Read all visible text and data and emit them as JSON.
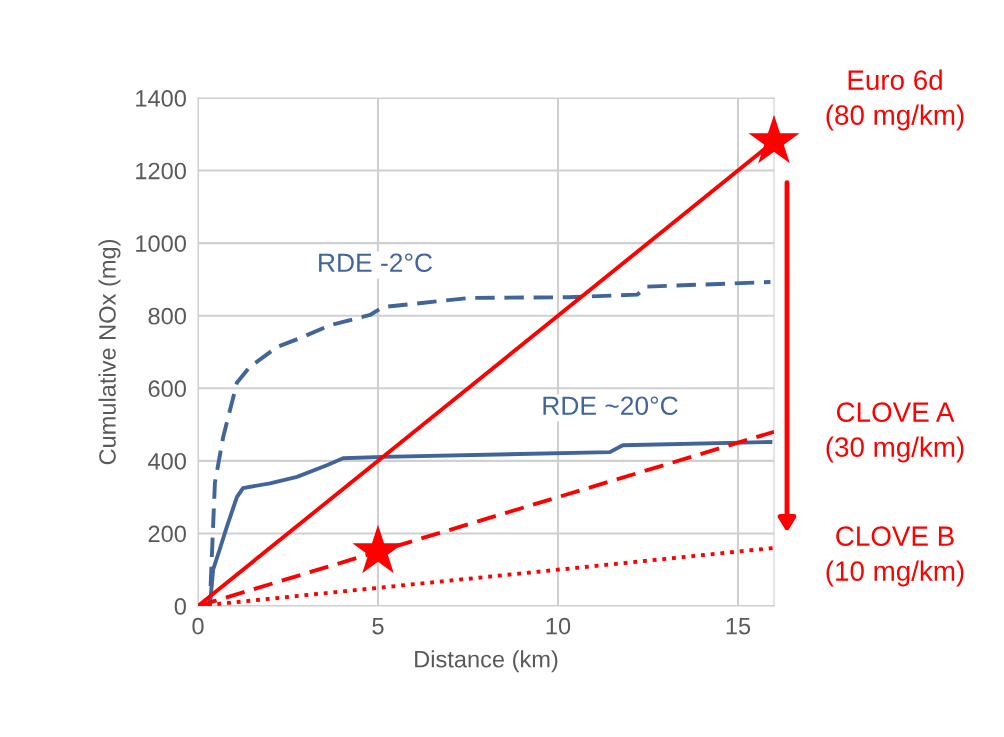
{
  "chart_data": {
    "type": "line",
    "xlabel": "Distance (km)",
    "ylabel": "Cumulative NOx (mg)",
    "xlim": [
      0,
      16
    ],
    "ylim": [
      0,
      1400
    ],
    "xticks": [
      0,
      5,
      10,
      15
    ],
    "yticks": [
      0,
      200,
      400,
      600,
      800,
      1000,
      1200,
      1400
    ],
    "grid": true,
    "series": [
      {
        "name": "RDE -2°C",
        "color": "#41649a",
        "line_style": "dashed",
        "x": [
          0,
          0.33,
          0.47,
          0.7,
          1.08,
          1.44,
          2.2,
          2.9,
          3.67,
          4.78,
          5.14,
          7.56,
          10.3,
          12.2,
          12.47,
          15.9
        ],
        "values": [
          0,
          8,
          340,
          466,
          615,
          659,
          714,
          741,
          774,
          802,
          824,
          849,
          851,
          858,
          880,
          893
        ]
      },
      {
        "name": "RDE ~20°C",
        "color": "#41649a",
        "line_style": "solid",
        "x": [
          0,
          0.33,
          0.42,
          0.6,
          0.8,
          1.08,
          1.25,
          2.0,
          2.75,
          3.58,
          4.03,
          5.14,
          11.44,
          11.8,
          15.9
        ],
        "values": [
          0,
          0,
          100,
          155,
          218,
          300,
          325,
          338,
          356,
          388,
          407,
          411,
          424,
          443,
          452
        ]
      },
      {
        "name": "Euro 6d\n(80 mg/km)",
        "color": "#ff0000",
        "line_style": "solid",
        "x": [
          0,
          16
        ],
        "values": [
          0,
          1280
        ]
      },
      {
        "name": "CLOVE A\n(30 mg/km)",
        "color": "#ff0000",
        "line_style": "dashed",
        "x": [
          0,
          16
        ],
        "values": [
          0,
          480
        ]
      },
      {
        "name": "CLOVE B\n(10 mg/km)",
        "color": "#ff0000",
        "line_style": "dotted",
        "x": [
          0,
          16
        ],
        "values": [
          0,
          160
        ]
      },
      {
        "type": "scatter",
        "color": "#ff0000",
        "marker": "star",
        "x": [
          5,
          16
        ],
        "values": [
          150,
          1280
        ]
      }
    ]
  }
}
